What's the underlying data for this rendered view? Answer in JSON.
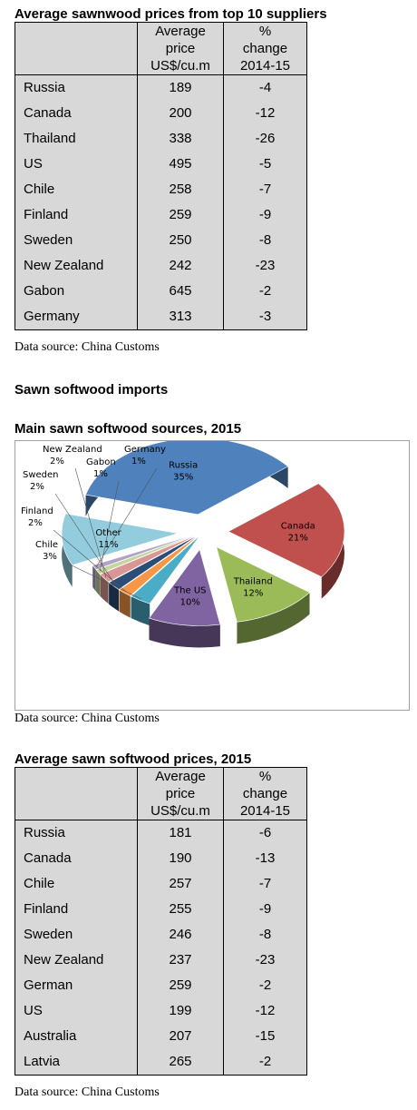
{
  "table1": {
    "title": "Average sawnwood prices from top 10 suppliers",
    "headers": {
      "col2": [
        "Average",
        "price",
        "US$/cu.m"
      ],
      "col3": [
        "%",
        "change",
        "2014-15"
      ]
    },
    "rows": [
      {
        "country": "Russia",
        "price": "189",
        "change": "-4"
      },
      {
        "country": "Canada",
        "price": "200",
        "change": "-12"
      },
      {
        "country": "Thailand",
        "price": "338",
        "change": "-26"
      },
      {
        "country": "US",
        "price": "495",
        "change": "-5"
      },
      {
        "country": "Chile",
        "price": "258",
        "change": "-7"
      },
      {
        "country": "Finland",
        "price": "259",
        "change": "-9"
      },
      {
        "country": "Sweden",
        "price": "250",
        "change": "-8"
      },
      {
        "country": "New Zealand",
        "price": "242",
        "change": "-23"
      },
      {
        "country": "Gabon",
        "price": "645",
        "change": "-2"
      },
      {
        "country": "Germany",
        "price": "313",
        "change": "-3"
      }
    ],
    "source": "Data source: China Customs"
  },
  "section_title": "Sawn softwood imports",
  "chart_title": "Main sawn softwood sources, 2015",
  "chart_source": "Data source: China Customs",
  "chart_data": {
    "type": "pie",
    "title": "Main sawn softwood sources, 2015",
    "slices": [
      {
        "label": "Russia",
        "value": 35,
        "text": "35%",
        "color": "#4f81bd"
      },
      {
        "label": "Canada",
        "value": 21,
        "text": "21%",
        "color": "#c0504d"
      },
      {
        "label": "Thailand",
        "value": 12,
        "text": "12%",
        "color": "#9bbb59"
      },
      {
        "label": "The US",
        "value": 10,
        "text": "10%",
        "color": "#8064a2"
      },
      {
        "label": "Chile",
        "value": 3,
        "text": "3%",
        "color": "#4bacc6"
      },
      {
        "label": "Finland",
        "value": 2,
        "text": "2%",
        "color": "#f79646"
      },
      {
        "label": "Sweden",
        "value": 2,
        "text": "2%",
        "color": "#2c4d75"
      },
      {
        "label": "New Zealand",
        "value": 2,
        "text": "2%",
        "color": "#d99694"
      },
      {
        "label": "Gabon",
        "value": 1,
        "text": "1%",
        "color": "#c3d69b"
      },
      {
        "label": "Germany",
        "value": 1,
        "text": "1%",
        "color": "#b3a2c7"
      },
      {
        "label": "Other",
        "value": 11,
        "text": "11%",
        "color": "#93cddd"
      }
    ]
  },
  "table2": {
    "title": "Average sawn softwood prices, 2015",
    "headers": {
      "col2": [
        "Average",
        "price",
        "US$/cu.m"
      ],
      "col3": [
        "%",
        "change",
        "2014-15"
      ]
    },
    "rows": [
      {
        "country": "Russia",
        "price": "181",
        "change": "-6"
      },
      {
        "country": "Canada",
        "price": "190",
        "change": "-13"
      },
      {
        "country": "Chile",
        "price": "257",
        "change": "-7"
      },
      {
        "country": "Finland",
        "price": "255",
        "change": "-9"
      },
      {
        "country": "Sweden",
        "price": "246",
        "change": "-8"
      },
      {
        "country": "New Zealand",
        "price": "237",
        "change": "-23"
      },
      {
        "country": "German",
        "price": "259",
        "change": "-2"
      },
      {
        "country": "US",
        "price": "199",
        "change": "-12"
      },
      {
        "country": "Australia",
        "price": "207",
        "change": "-15"
      },
      {
        "country": "Latvia",
        "price": "265",
        "change": "-2"
      }
    ],
    "source": "Data source: China Customs"
  }
}
